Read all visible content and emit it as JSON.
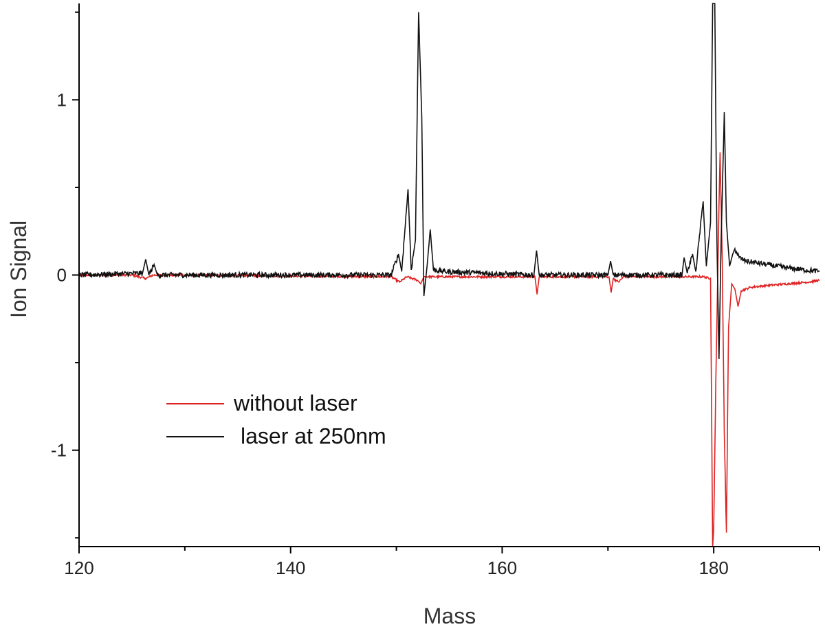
{
  "chart_data": {
    "type": "line",
    "title": "",
    "xlabel": "Mass",
    "ylabel": "Ion Signal",
    "xlim": [
      120,
      190
    ],
    "ylim": [
      -1.55,
      1.55
    ],
    "x_ticks": [
      120,
      140,
      160,
      180
    ],
    "y_ticks": [
      1,
      0,
      -1
    ],
    "x_tick_labels": [
      "120",
      "140",
      "160",
      "180"
    ],
    "y_tick_labels": [
      "1",
      "0",
      "-1"
    ],
    "grid": false,
    "legend_placement": "lower-left",
    "series": [
      {
        "name": "without laser",
        "color": "#dd2222",
        "points": [
          [
            120,
            0.0
          ],
          [
            125,
            0.0
          ],
          [
            126.3,
            -0.02
          ],
          [
            127,
            0.0
          ],
          [
            149.5,
            -0.01
          ],
          [
            150.3,
            -0.04
          ],
          [
            151,
            -0.01
          ],
          [
            152,
            -0.03
          ],
          [
            152.3,
            -0.05
          ],
          [
            152.6,
            -0.01
          ],
          [
            153.5,
            -0.01
          ],
          [
            163.1,
            -0.01
          ],
          [
            163.3,
            -0.11
          ],
          [
            163.5,
            -0.01
          ],
          [
            170.1,
            -0.01
          ],
          [
            170.3,
            -0.1
          ],
          [
            170.5,
            -0.02
          ],
          [
            171,
            -0.04
          ],
          [
            171.5,
            -0.01
          ],
          [
            179,
            -0.01
          ],
          [
            179.7,
            -0.02
          ],
          [
            179.9,
            -1.55
          ],
          [
            180.0,
            -1.45
          ],
          [
            180.2,
            -0.6
          ],
          [
            180.5,
            0.4
          ],
          [
            180.6,
            0.7
          ],
          [
            180.8,
            0.1
          ],
          [
            181.0,
            -0.9
          ],
          [
            181.2,
            -1.47
          ],
          [
            181.4,
            -0.3
          ],
          [
            181.7,
            -0.05
          ],
          [
            182.0,
            -0.08
          ],
          [
            182.3,
            -0.18
          ],
          [
            182.6,
            -0.09
          ],
          [
            183.5,
            -0.07
          ],
          [
            185,
            -0.06
          ],
          [
            187,
            -0.05
          ],
          [
            189,
            -0.04
          ],
          [
            190,
            -0.03
          ]
        ]
      },
      {
        "name": "laser at 250nm",
        "color": "#111111",
        "points": [
          [
            120,
            0.0
          ],
          [
            126,
            0.01
          ],
          [
            126.3,
            0.09
          ],
          [
            126.6,
            0.0
          ],
          [
            127.1,
            0.06
          ],
          [
            127.4,
            0.0
          ],
          [
            149.5,
            0.0
          ],
          [
            150.2,
            0.12
          ],
          [
            150.5,
            0.02
          ],
          [
            151.1,
            0.49
          ],
          [
            151.4,
            0.03
          ],
          [
            151.8,
            0.2
          ],
          [
            152.1,
            1.5
          ],
          [
            152.4,
            0.9
          ],
          [
            152.6,
            -0.12
          ],
          [
            152.9,
            0.05
          ],
          [
            153.2,
            0.26
          ],
          [
            153.5,
            0.03
          ],
          [
            154.5,
            0.02
          ],
          [
            163,
            0.0
          ],
          [
            163.25,
            0.14
          ],
          [
            163.5,
            0.0
          ],
          [
            170,
            0.0
          ],
          [
            170.25,
            0.08
          ],
          [
            170.5,
            0.0
          ],
          [
            177,
            0.0
          ],
          [
            177.2,
            0.1
          ],
          [
            177.5,
            0.01
          ],
          [
            178,
            0.12
          ],
          [
            178.3,
            0.02
          ],
          [
            179.0,
            0.42
          ],
          [
            179.3,
            0.05
          ],
          [
            179.7,
            0.3
          ],
          [
            179.9,
            1.55
          ],
          [
            180.1,
            1.55
          ],
          [
            180.3,
            0.2
          ],
          [
            180.5,
            -0.48
          ],
          [
            180.7,
            0.2
          ],
          [
            181.0,
            0.93
          ],
          [
            181.2,
            0.3
          ],
          [
            181.5,
            0.05
          ],
          [
            181.8,
            0.12
          ],
          [
            182.0,
            0.15
          ],
          [
            182.4,
            0.1
          ],
          [
            183,
            0.08
          ],
          [
            185,
            0.06
          ],
          [
            187,
            0.04
          ],
          [
            190,
            0.02
          ]
        ]
      }
    ]
  }
}
